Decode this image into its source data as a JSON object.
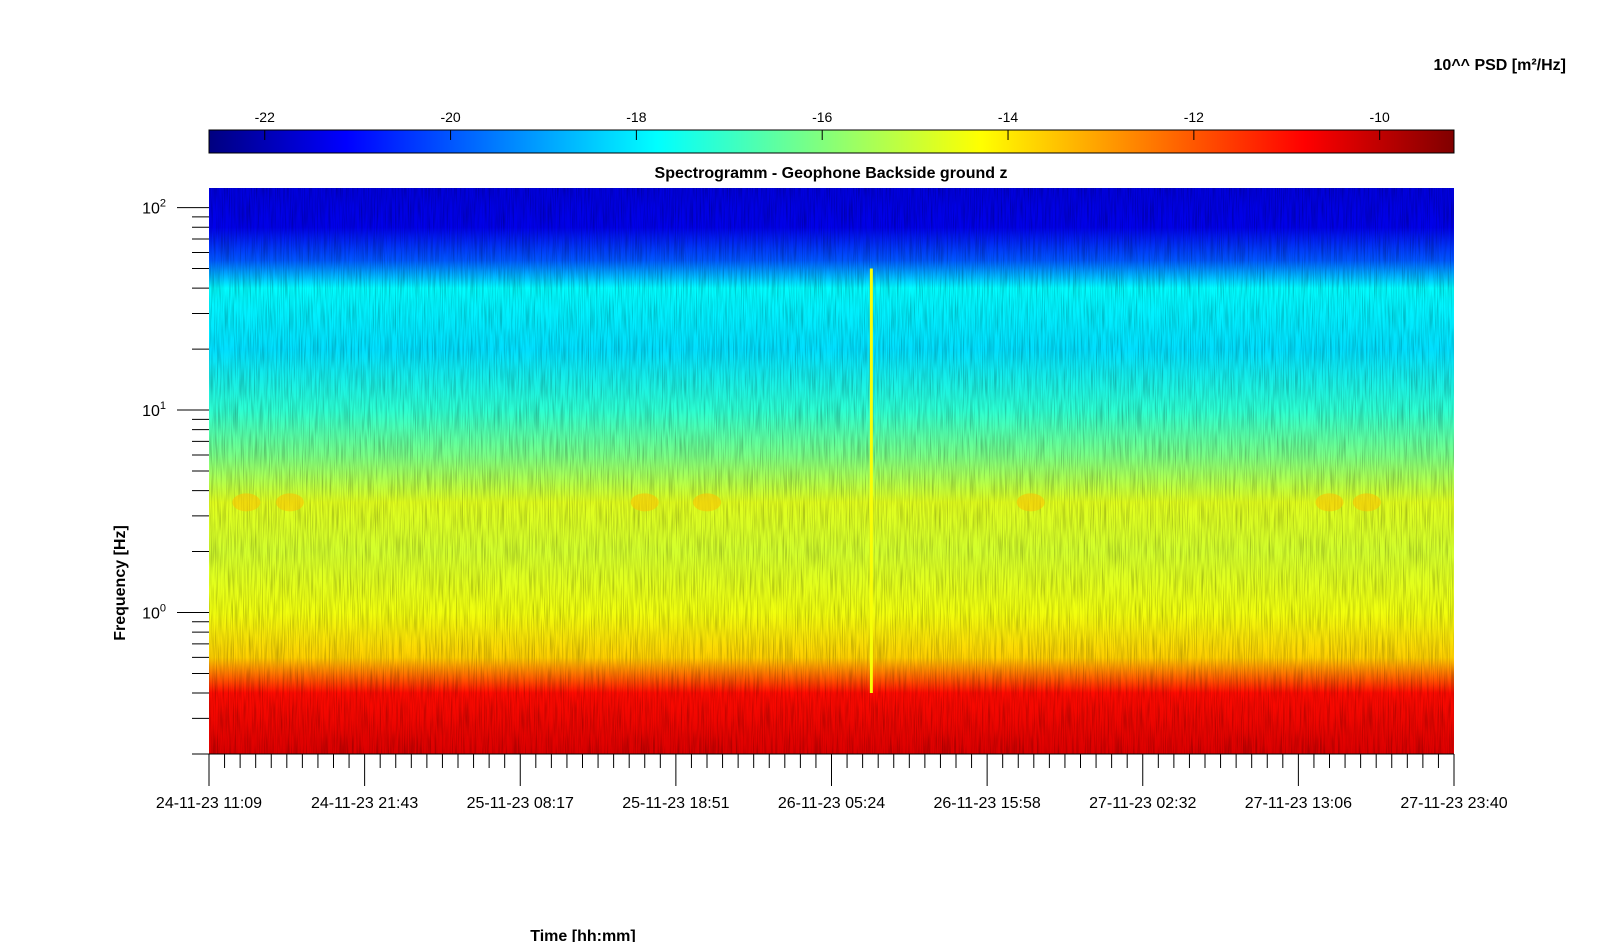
{
  "chart_data": {
    "type": "heatmap",
    "title": "Spectrogramm - Geophone Backside ground z",
    "xlabel": "Time [hh:mm]",
    "ylabel": "Frequency [Hz]",
    "colorbar_label": "10^^ PSD [m²/Hz]",
    "colormap": "jet",
    "y_scale": "log",
    "ylim": [
      0.2,
      125
    ],
    "x_tick_labels": [
      "24-11-23 11:09",
      "24-11-23 21:43",
      "25-11-23 08:17",
      "25-11-23 18:51",
      "26-11-23 05:24",
      "26-11-23 15:58",
      "27-11-23 02:32",
      "27-11-23 13:06",
      "27-11-23 23:40"
    ],
    "y_ticks": [
      {
        "base": "10",
        "exp": "0",
        "value": 1
      },
      {
        "base": "10",
        "exp": "1",
        "value": 10
      },
      {
        "base": "10",
        "exp": "2",
        "value": 100
      }
    ],
    "colorbar_range": [
      -22.6,
      -9.2
    ],
    "colorbar_ticks": [
      -22,
      -20,
      -18,
      -16,
      -14,
      -12,
      -10
    ],
    "colorbar_tick_labels": [
      "-22",
      "-20",
      "-18",
      "-16",
      "-14",
      "-12",
      "-10"
    ],
    "psd_profile": [
      {
        "f": 0.2,
        "level": -10.4
      },
      {
        "f": 0.4,
        "level": -11.0
      },
      {
        "f": 0.6,
        "level": -13.6
      },
      {
        "f": 1.0,
        "level": -14.4
      },
      {
        "f": 2.0,
        "level": -14.8
      },
      {
        "f": 3.5,
        "level": -14.6
      },
      {
        "f": 6.0,
        "level": -16.0
      },
      {
        "f": 10.0,
        "level": -17.0
      },
      {
        "f": 20.0,
        "level": -18.0
      },
      {
        "f": 40.0,
        "level": -17.6
      },
      {
        "f": 55.0,
        "level": -19.8
      },
      {
        "f": 80.0,
        "level": -21.2
      },
      {
        "f": 125.0,
        "level": -21.4
      }
    ],
    "events": [
      {
        "time": "26-11-23 ~06:30",
        "f_range": [
          0.4,
          50
        ],
        "level": -14.3
      }
    ]
  }
}
